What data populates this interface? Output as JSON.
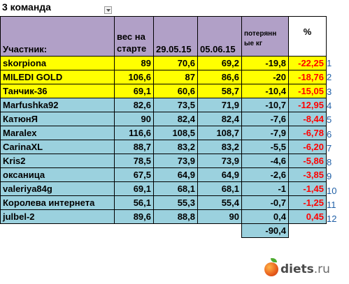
{
  "title": "3 команда",
  "headers": {
    "name": "Участник:",
    "start_line1": "вес на",
    "start_line2": "старте",
    "date1": "29.05.15",
    "date2": "05.06.15",
    "loss_line1": "потерянн",
    "loss_line2": "ые кг",
    "pct": "%"
  },
  "rows": [
    {
      "name": "skorpiona",
      "start": "89",
      "w1": "70,6",
      "w2": "69,2",
      "loss": "-19,8",
      "pct": "-22,25",
      "rank": "1",
      "highlight": "yellow"
    },
    {
      "name": "MILEDI GOLD",
      "start": "106,6",
      "w1": "87",
      "w2": "86,6",
      "loss": "-20",
      "pct": "-18,76",
      "rank": "2",
      "highlight": "yellow"
    },
    {
      "name": "Танчик-36",
      "start": "69,1",
      "w1": "60,6",
      "w2": "58,7",
      "loss": "-10,4",
      "pct": "-15,05",
      "rank": "3",
      "highlight": "yellow"
    },
    {
      "name": "Marfushka92",
      "start": "82,6",
      "w1": "73,5",
      "w2": "71,9",
      "loss": "-10,7",
      "pct": "-12,95",
      "rank": "4",
      "highlight": "blue"
    },
    {
      "name": "КатюнЯ",
      "start": "90",
      "w1": "82,4",
      "w2": "82,4",
      "loss": "-7,6",
      "pct": "-8,44",
      "rank": "5",
      "highlight": "blue"
    },
    {
      "name": "Maralex",
      "start": "116,6",
      "w1": "108,5",
      "w2": "108,7",
      "loss": "-7,9",
      "pct": "-6,78",
      "rank": "6",
      "highlight": "blue"
    },
    {
      "name": "CarinaXL",
      "start": "88,7",
      "w1": "83,2",
      "w2": "83,2",
      "loss": "-5,5",
      "pct": "-6,20",
      "rank": "7",
      "highlight": "blue"
    },
    {
      "name": "Kris2",
      "start": "78,5",
      "w1": "73,9",
      "w2": "73,9",
      "loss": "-4,6",
      "pct": "-5,86",
      "rank": "8",
      "highlight": "blue"
    },
    {
      "name": "оксаница",
      "start": "67,5",
      "w1": "64,9",
      "w2": "64,9",
      "loss": "-2,6",
      "pct": "-3,85",
      "rank": "9",
      "highlight": "blue"
    },
    {
      "name": "valeriya84g",
      "start": "69,1",
      "w1": "68,1",
      "w2": "68,1",
      "loss": "-1",
      "pct": "-1,45",
      "rank": "10",
      "highlight": "blue"
    },
    {
      "name": "Королева интернета",
      "start": "56,1",
      "w1": "55,3",
      "w2": "55,4",
      "loss": "-0,7",
      "pct": "-1,25",
      "rank": "11",
      "highlight": "blue"
    },
    {
      "name": "julbel-2",
      "start": "89,6",
      "w1": "88,8",
      "w2": "90",
      "loss": "0,4",
      "pct": "0,45",
      "rank": "12",
      "highlight": "blue"
    }
  ],
  "total_loss": "-90,4",
  "watermark": {
    "site": "diets",
    "tld": ".ru"
  },
  "colors": {
    "yellow_row": "#ffff00",
    "blue_row": "#9bd1de",
    "header": "#b1a0c7",
    "percent_text": "#ff0000",
    "rank_text": "#1f5fa6"
  }
}
